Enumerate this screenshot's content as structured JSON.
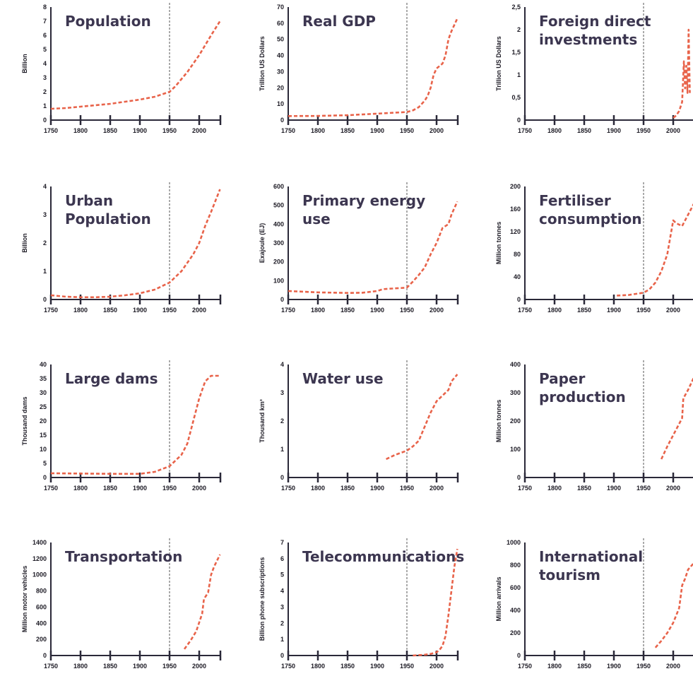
{
  "chart_data": [
    {
      "type": "line",
      "title": [
        "Population"
      ],
      "ylabel": "Billion",
      "xlim": [
        1750,
        2040
      ],
      "ylim": [
        0,
        8
      ],
      "yticks": [
        "0",
        "1",
        "2",
        "3",
        "4",
        "5",
        "6",
        "7",
        "8"
      ],
      "ytick_values": [
        0,
        1,
        2,
        3,
        4,
        5,
        6,
        7,
        8
      ],
      "xticks": [
        1750,
        1800,
        1850,
        1900,
        1950,
        2000
      ],
      "reference_year": 1950,
      "x": [
        1750,
        1775,
        1800,
        1825,
        1850,
        1875,
        1900,
        1925,
        1950,
        1960,
        1970,
        1980,
        1990,
        2000,
        2010,
        2020,
        2035
      ],
      "y": [
        0.8,
        0.85,
        0.95,
        1.05,
        1.15,
        1.3,
        1.45,
        1.65,
        2.0,
        2.4,
        2.9,
        3.4,
        4.0,
        4.6,
        5.3,
        6.0,
        7.0
      ]
    },
    {
      "type": "line",
      "title": [
        "Real GDP"
      ],
      "ylabel": "Trillion US Dollars",
      "xlim": [
        1750,
        2040
      ],
      "ylim": [
        0,
        70
      ],
      "yticks": [
        "0",
        "10",
        "20",
        "30",
        "40",
        "50",
        "60",
        "70"
      ],
      "ytick_values": [
        0,
        10,
        20,
        30,
        40,
        50,
        60,
        70
      ],
      "xticks": [
        1750,
        1800,
        1850,
        1900,
        1950,
        2000
      ],
      "reference_year": 1950,
      "x": [
        1750,
        1800,
        1850,
        1900,
        1925,
        1950,
        1960,
        1970,
        1975,
        1980,
        1985,
        1990,
        1995,
        2000,
        2010,
        2015,
        2020,
        2025,
        2035
      ],
      "y": [
        2.5,
        2.6,
        3,
        4,
        4.5,
        5,
        6,
        8,
        10,
        12,
        15,
        20,
        28,
        32,
        35,
        40,
        50,
        55,
        63
      ]
    },
    {
      "type": "line",
      "title": [
        "Foreign direct",
        "investments"
      ],
      "ylabel": "Trillion US Dollars",
      "xlim": [
        1750,
        2040
      ],
      "ylim": [
        0,
        2.5
      ],
      "yticks": [
        "0",
        "0,5",
        "1",
        "1,5",
        "2",
        "2,5"
      ],
      "ytick_values": [
        0,
        0.5,
        1,
        1.5,
        2,
        2.5
      ],
      "xticks": [
        1750,
        1800,
        1850,
        1900,
        1950,
        2000
      ],
      "reference_year": 1950,
      "x": [
        2000,
        2005,
        2010,
        2015,
        2018,
        2020,
        2022,
        2024,
        2026,
        2028
      ],
      "y": [
        0.05,
        0.1,
        0.2,
        0.4,
        1.3,
        0.7,
        1.2,
        0.6,
        2.0,
        0.6
      ]
    },
    {
      "type": "line",
      "title": [
        "Urban",
        "Population"
      ],
      "ylabel": "Billion",
      "xlim": [
        1750,
        2040
      ],
      "ylim": [
        0,
        4
      ],
      "yticks": [
        "0",
        "1",
        "2",
        "3",
        "4"
      ],
      "ytick_values": [
        0,
        1,
        2,
        3,
        4
      ],
      "xticks": [
        1750,
        1800,
        1850,
        1900,
        1950,
        2000
      ],
      "reference_year": 1950,
      "x": [
        1750,
        1775,
        1800,
        1825,
        1850,
        1875,
        1900,
        1925,
        1950,
        1960,
        1970,
        1980,
        1990,
        2000,
        2010,
        2020,
        2035
      ],
      "y": [
        0.15,
        0.1,
        0.08,
        0.08,
        0.1,
        0.15,
        0.22,
        0.35,
        0.6,
        0.8,
        1.0,
        1.3,
        1.6,
        2.0,
        2.6,
        3.1,
        3.9
      ]
    },
    {
      "type": "line",
      "title": [
        "Primary energy",
        "use"
      ],
      "ylabel": "Exajoule (EJ)",
      "xlim": [
        1750,
        2040
      ],
      "ylim": [
        0,
        600
      ],
      "yticks": [
        "0",
        "100",
        "200",
        "300",
        "400",
        "500",
        "600"
      ],
      "ytick_values": [
        0,
        100,
        200,
        300,
        400,
        500,
        600
      ],
      "xticks": [
        1750,
        1800,
        1850,
        1900,
        1950,
        2000
      ],
      "reference_year": 1950,
      "x": [
        1750,
        1800,
        1850,
        1875,
        1900,
        1910,
        1925,
        1950,
        1960,
        1970,
        1980,
        1990,
        2000,
        2010,
        2020,
        2025,
        2035
      ],
      "y": [
        45,
        38,
        35,
        36,
        45,
        55,
        58,
        63,
        95,
        130,
        170,
        240,
        300,
        380,
        400,
        450,
        520
      ]
    },
    {
      "type": "line",
      "title": [
        "Fertiliser",
        "consumption"
      ],
      "ylabel": "Million tonnes",
      "xlim": [
        1750,
        2040
      ],
      "ylim": [
        0,
        200
      ],
      "yticks": [
        "0",
        "40",
        "80",
        "120",
        "160",
        "200"
      ],
      "ytick_values": [
        0,
        40,
        80,
        120,
        160,
        200
      ],
      "xticks": [
        1750,
        1800,
        1850,
        1900,
        1950,
        2000
      ],
      "reference_year": 1950,
      "x": [
        1905,
        1925,
        1950,
        1960,
        1970,
        1980,
        1990,
        2000,
        2005,
        2015,
        2025,
        2035
      ],
      "y": [
        7,
        8,
        12,
        18,
        30,
        50,
        80,
        140,
        135,
        130,
        150,
        170
      ]
    },
    {
      "type": "line",
      "title": [
        "Large dams"
      ],
      "ylabel": "Thousand dams",
      "xlim": [
        1750,
        2040
      ],
      "ylim": [
        0,
        40
      ],
      "yticks": [
        "0",
        "5",
        "10",
        "15",
        "20",
        "25",
        "30",
        "35",
        "40"
      ],
      "ytick_values": [
        0,
        5,
        10,
        15,
        20,
        25,
        30,
        35,
        40
      ],
      "xticks": [
        1750,
        1800,
        1850,
        1900,
        1950,
        2000
      ],
      "reference_year": 1950,
      "x": [
        1750,
        1800,
        1850,
        1900,
        1925,
        1950,
        1960,
        1970,
        1980,
        1990,
        2000,
        2010,
        2020,
        2035
      ],
      "y": [
        1.5,
        1.4,
        1.3,
        1.3,
        2,
        4,
        6,
        8,
        12,
        20,
        28,
        34,
        36,
        36
      ]
    },
    {
      "type": "line",
      "title": [
        "Water use"
      ],
      "ylabel": "Thousand km³",
      "xlim": [
        1750,
        2040
      ],
      "ylim": [
        0,
        4
      ],
      "yticks": [
        "0",
        "1",
        "2",
        "3",
        "4"
      ],
      "ytick_values": [
        0,
        1,
        2,
        3,
        4
      ],
      "xticks": [
        1750,
        1800,
        1850,
        1900,
        1950,
        2000
      ],
      "reference_year": 1950,
      "x": [
        1915,
        1930,
        1950,
        1960,
        1970,
        1980,
        1990,
        2000,
        2010,
        2020,
        2025,
        2035
      ],
      "y": [
        0.65,
        0.8,
        0.95,
        1.1,
        1.3,
        1.8,
        2.3,
        2.7,
        2.9,
        3.1,
        3.4,
        3.65
      ]
    },
    {
      "type": "line",
      "title": [
        "Paper",
        "production"
      ],
      "ylabel": "Million tonnes",
      "xlim": [
        1750,
        2040
      ],
      "ylim": [
        0,
        400
      ],
      "yticks": [
        "0",
        "100",
        "200",
        "300",
        "400"
      ],
      "ytick_values": [
        0,
        100,
        200,
        300,
        400
      ],
      "xticks": [
        1750,
        1800,
        1850,
        1900,
        1950,
        2000
      ],
      "reference_year": 1950,
      "x": [
        1980,
        1990,
        2000,
        2010,
        2015,
        2017,
        2025,
        2035
      ],
      "y": [
        65,
        110,
        150,
        190,
        210,
        280,
        310,
        355
      ]
    },
    {
      "type": "line",
      "title": [
        "Transportation"
      ],
      "ylabel": "Million motor vehicles",
      "xlim": [
        1750,
        2040
      ],
      "ylim": [
        0,
        1400
      ],
      "yticks": [
        "0",
        "200",
        "400",
        "600",
        "800",
        "1000",
        "1200",
        "1400"
      ],
      "ytick_values": [
        0,
        200,
        400,
        600,
        800,
        1000,
        1200,
        1400
      ],
      "xticks": [
        1750,
        1800,
        1850,
        1900,
        1950,
        2000
      ],
      "reference_year": 1950,
      "x": [
        1975,
        1985,
        1995,
        2005,
        2008,
        2015,
        2020,
        2025,
        2035
      ],
      "y": [
        80,
        180,
        300,
        520,
        700,
        780,
        1000,
        1100,
        1250
      ]
    },
    {
      "type": "line",
      "title": [
        "Telecommunications"
      ],
      "ylabel": "Billion phone subscriptions",
      "xlim": [
        1750,
        2040
      ],
      "ylim": [
        0,
        7
      ],
      "yticks": [
        "0",
        "1",
        "2",
        "3",
        "4",
        "5",
        "6",
        "7"
      ],
      "ytick_values": [
        0,
        1,
        2,
        3,
        4,
        5,
        6,
        7
      ],
      "xticks": [
        1750,
        1800,
        1850,
        1900,
        1950,
        2000
      ],
      "reference_year": 1950,
      "x": [
        1960,
        1980,
        1990,
        2000,
        2005,
        2010,
        2015,
        2020,
        2025,
        2030,
        2035
      ],
      "y": [
        0,
        0.05,
        0.1,
        0.2,
        0.35,
        0.6,
        1.2,
        2.5,
        4,
        5.5,
        6.6
      ]
    },
    {
      "type": "line",
      "title": [
        "International",
        "tourism"
      ],
      "ylabel": "Million arrivals",
      "xlim": [
        1750,
        2040
      ],
      "ylim": [
        0,
        1000
      ],
      "yticks": [
        "0",
        "200",
        "400",
        "600",
        "800",
        "1000"
      ],
      "ytick_values": [
        0,
        200,
        400,
        600,
        800,
        1000
      ],
      "xticks": [
        1750,
        1800,
        1850,
        1900,
        1950,
        2000
      ],
      "reference_year": 1950,
      "x": [
        1970,
        1980,
        1990,
        2000,
        2010,
        2015,
        2020,
        2025,
        2035,
        2040
      ],
      "y": [
        70,
        130,
        200,
        290,
        420,
        620,
        680,
        760,
        820,
        920
      ]
    }
  ]
}
